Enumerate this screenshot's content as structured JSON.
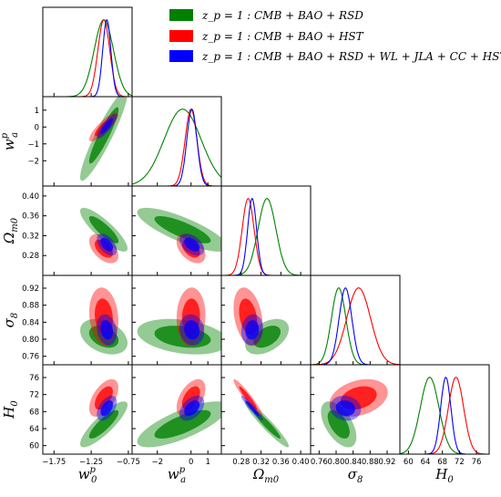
{
  "colors": {
    "green": "#008000",
    "red": "#ff0000",
    "blue": "#0000ff"
  },
  "chart_data": {
    "type": "corner",
    "legend": [
      {
        "color": "green",
        "label": "z_p = 1 :  CMB + BAO + RSD"
      },
      {
        "color": "red",
        "label": "z_p = 1 :  CMB + BAO + HST"
      },
      {
        "color": "blue",
        "label": "z_p = 1 :  CMB + BAO + RSD + WL + JLA + CC + HST"
      }
    ],
    "legend_placement": "top-right",
    "parameters": [
      {
        "id": "w0",
        "label_main": "w",
        "label_sub": "0",
        "label_sup": "p",
        "range": [
          -1.9,
          -0.7
        ],
        "ticks": [
          -1.75,
          -1.25,
          -0.75
        ]
      },
      {
        "id": "wa",
        "label_main": "w",
        "label_sub": "a",
        "label_sup": "p",
        "range": [
          -3.5,
          1.8
        ],
        "ticks": [
          -2,
          0,
          1
        ],
        "yticks": [
          -2,
          -1,
          0,
          1
        ]
      },
      {
        "id": "Om",
        "label_main": "Ω",
        "label_sub": "m0",
        "label_sup": "",
        "range": [
          0.24,
          0.42
        ],
        "ticks": [
          0.28,
          0.32,
          0.36,
          0.4
        ],
        "yticks": [
          0.28,
          0.32,
          0.36,
          0.4
        ]
      },
      {
        "id": "s8",
        "label_main": "σ",
        "label_sub": "8",
        "label_sup": "",
        "range": [
          0.74,
          0.95
        ],
        "ticks": [
          0.76,
          0.8,
          0.84,
          0.88,
          0.92
        ],
        "yticks": [
          0.76,
          0.8,
          0.84,
          0.88,
          0.92
        ]
      },
      {
        "id": "H0",
        "label_main": "H",
        "label_sub": "0",
        "label_sup": "",
        "range": [
          58,
          79
        ],
        "ticks": [
          60,
          64,
          68,
          72,
          76
        ],
        "yticks": [
          60,
          64,
          68,
          72,
          76
        ]
      }
    ],
    "tick_labels": {
      "w0": [
        "−1.75",
        "−1.25",
        "−0.75"
      ],
      "wa": [
        "−2",
        "0",
        "1"
      ],
      "wa_y": [
        "−2",
        "−1",
        "0",
        "1"
      ],
      "Om": [
        "0.28",
        "0.32",
        "0.36",
        "0.40"
      ],
      "s8": [
        "0.76",
        "0.80",
        "0.84",
        "0.88",
        "0.92"
      ],
      "H0": [
        "60",
        "64",
        "68",
        "72",
        "76"
      ]
    },
    "series": [
      {
        "name": "CMB+BAO+RSD",
        "color": "green",
        "mean": {
          "w0": -1.08,
          "wa": -0.5,
          "Om": 0.332,
          "s8": 0.806,
          "H0": 65.0
        },
        "sigma": {
          "w0": 0.13,
          "wa": 1.1,
          "Om": 0.018,
          "s8": 0.017,
          "H0": 2.2
        },
        "corr": {
          "w0_wa": 0.92,
          "w0_Om": -0.85,
          "w0_s8": -0.35,
          "w0_H0": 0.85,
          "wa_Om": -0.8,
          "wa_s8": -0.3,
          "wa_H0": 0.75,
          "Om_s8": 0.45,
          "Om_H0": -0.95,
          "s8_H0": -0.55
        }
      },
      {
        "name": "CMB+BAO+HST",
        "color": "red",
        "mean": {
          "w0": -1.08,
          "wa": 0.0,
          "Om": 0.294,
          "s8": 0.853,
          "H0": 71.2
        },
        "sigma": {
          "w0": 0.08,
          "wa": 0.35,
          "Om": 0.012,
          "s8": 0.028,
          "H0": 1.8
        },
        "corr": {
          "w0_wa": 0.85,
          "w0_Om": -0.5,
          "w0_s8": -0.15,
          "w0_H0": 0.55,
          "wa_Om": -0.45,
          "wa_s8": 0.05,
          "wa_H0": 0.5,
          "Om_s8": -0.3,
          "Om_H0": -0.95,
          "s8_H0": 0.3
        }
      },
      {
        "name": "CMB+BAO+RSD+WL+JLA+CC+HST",
        "color": "blue",
        "mean": {
          "w0": -1.04,
          "wa": 0.05,
          "Om": 0.302,
          "s8": 0.822,
          "H0": 68.8
        },
        "sigma": {
          "w0": 0.055,
          "wa": 0.3,
          "Om": 0.009,
          "s8": 0.015,
          "H0": 1.2
        },
        "corr": {
          "w0_wa": 0.85,
          "w0_Om": -0.5,
          "w0_s8": -0.2,
          "w0_H0": 0.5,
          "wa_Om": -0.45,
          "wa_s8": -0.1,
          "wa_H0": 0.45,
          "Om_s8": 0.1,
          "Om_H0": -0.95,
          "s8_H0": -0.1
        }
      }
    ]
  }
}
